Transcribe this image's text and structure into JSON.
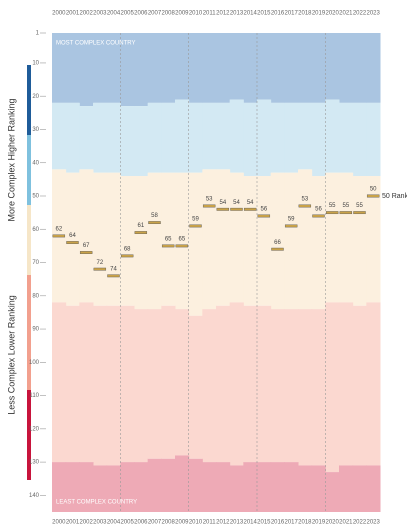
{
  "chart_data": {
    "type": "rank",
    "axis_label_top": "More Complex Higher Ranking",
    "axis_label_bottom": "Less Complex Lower Ranking",
    "top_label": "MOST COMPLEX COUNTRY",
    "bottom_label": "LEAST COMPLEX COUNTRY",
    "end_label": "50 Ranks",
    "categories": [
      "2000",
      "2001",
      "2002",
      "2003",
      "2004",
      "2005",
      "2006",
      "2007",
      "2008",
      "2009",
      "2010",
      "2011",
      "2012",
      "2013",
      "2014",
      "2015",
      "2016",
      "2017",
      "2018",
      "2019",
      "2020",
      "2021",
      "2022",
      "2023"
    ],
    "values": [
      62,
      64,
      67,
      72,
      74,
      68,
      61,
      58,
      65,
      65,
      59,
      53,
      54,
      54,
      54,
      56,
      66,
      59,
      53,
      56,
      55,
      55,
      55,
      50
    ],
    "color": "#c9a248",
    "ylim": [
      1,
      145
    ],
    "yticks": [
      1,
      10,
      20,
      30,
      40,
      50,
      60,
      70,
      80,
      90,
      100,
      110,
      120,
      130,
      140
    ],
    "bands": [
      {
        "color": "#aac5e1",
        "to": [
          22,
          22,
          23,
          22,
          22,
          23,
          23,
          22,
          22,
          21,
          22,
          22,
          22,
          21,
          22,
          21,
          22,
          22,
          22,
          22,
          21,
          22,
          22,
          22
        ]
      },
      {
        "color": "#d3e9f3",
        "to": [
          42,
          43,
          42,
          43,
          43,
          44,
          44,
          43,
          43,
          43,
          43,
          42,
          42,
          43,
          44,
          44,
          43,
          43,
          42,
          44,
          43,
          43,
          44,
          44
        ]
      },
      {
        "color": "#fcf0df",
        "to": [
          82,
          83,
          82,
          83,
          83,
          83,
          84,
          84,
          83,
          84,
          86,
          84,
          83,
          82,
          83,
          83,
          84,
          84,
          84,
          84,
          82,
          82,
          83,
          82
        ]
      },
      {
        "color": "#fbd8d0",
        "to": [
          130,
          130,
          130,
          131,
          131,
          130,
          130,
          129,
          129,
          128,
          129,
          130,
          130,
          131,
          130,
          130,
          130,
          130,
          131,
          131,
          133,
          131,
          131,
          131
        ]
      },
      {
        "color": "#eeaab6",
        "to": [
          145,
          145,
          145,
          145,
          145,
          145,
          145,
          145,
          145,
          145,
          145,
          145,
          145,
          145,
          145,
          145,
          145,
          145,
          145,
          145,
          145,
          145,
          145,
          145
        ]
      }
    ]
  }
}
